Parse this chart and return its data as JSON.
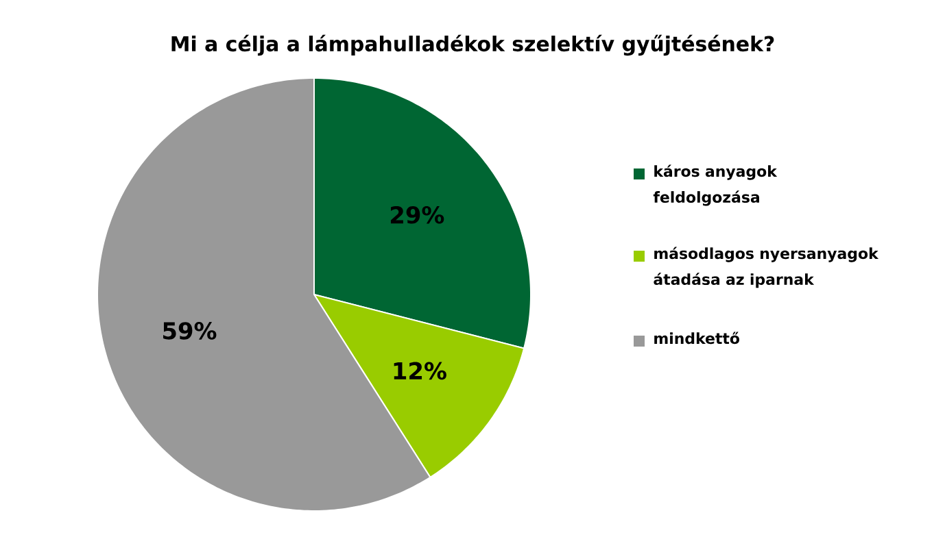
{
  "chart_data": {
    "type": "pie",
    "title": "Mi a célja a lámpahulladékok szelektív gyűjtésének?",
    "categories": [
      "káros anyagok feldolgozása",
      "másodlagos nyersanyagok átadása az iparnak",
      "mindkettő"
    ],
    "values": [
      29,
      12,
      59
    ],
    "value_labels": [
      "29%",
      "12%",
      "59%"
    ],
    "colors": [
      "#006633",
      "#99cc00",
      "#999999"
    ],
    "legend": "right"
  }
}
